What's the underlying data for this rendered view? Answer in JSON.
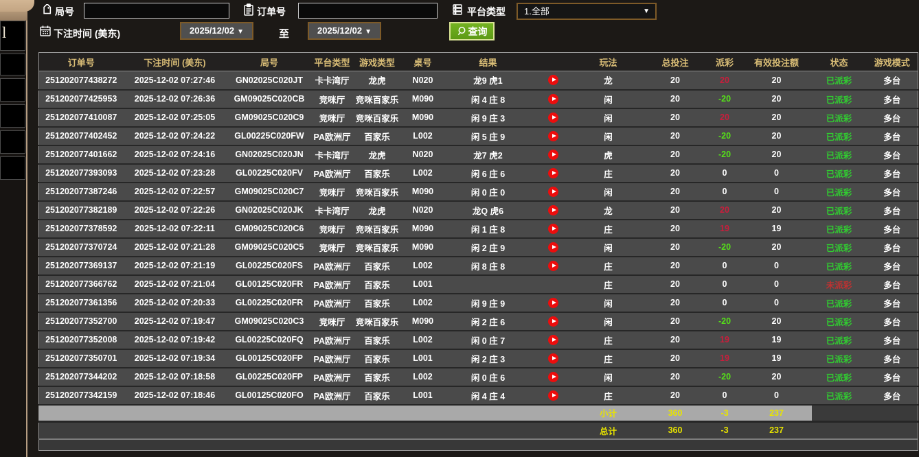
{
  "left_strip": {
    "glyph": "l"
  },
  "filters": {
    "round_label": "局号",
    "order_label": "订单号",
    "platform_label": "平台类型",
    "platform_value": "1.全部",
    "bet_time_label": "下注时间 (美东)",
    "date_from": "2025/12/02",
    "date_to": "2025/12/02",
    "range_separator": "至",
    "query_label": "查询"
  },
  "table": {
    "headers": [
      "订单号",
      "下注时间 (美东)",
      "局号",
      "平台类型",
      "游戏类型",
      "桌号",
      "结果",
      "",
      "玩法",
      "总投注",
      "派彩",
      "有效投注额",
      "状态",
      "游戏模式"
    ],
    "rows": [
      {
        "order": "251202077438272",
        "time": "2025-12-02 07:27:46",
        "round": "GN02025C020JT",
        "platform": "卡卡湾厅",
        "game": "龙虎",
        "table_no": "N020",
        "result": "龙9 虎1",
        "play": true,
        "bet_type": "龙",
        "total_bet": "20",
        "payout": "20",
        "valid_bet": "20",
        "status": "已派彩",
        "paid": true,
        "mode": "多台"
      },
      {
        "order": "251202077425953",
        "time": "2025-12-02 07:26:36",
        "round": "GM09025C020CB",
        "platform": "竞咪厅",
        "game": "竞咪百家乐",
        "table_no": "M090",
        "result": "闲 4 庄 8",
        "play": true,
        "bet_type": "闲",
        "total_bet": "20",
        "payout": "-20",
        "valid_bet": "20",
        "status": "已派彩",
        "paid": true,
        "mode": "多台"
      },
      {
        "order": "251202077410087",
        "time": "2025-12-02 07:25:05",
        "round": "GM09025C020C9",
        "platform": "竞咪厅",
        "game": "竞咪百家乐",
        "table_no": "M090",
        "result": "闲 9 庄 3",
        "play": true,
        "bet_type": "闲",
        "total_bet": "20",
        "payout": "20",
        "valid_bet": "20",
        "status": "已派彩",
        "paid": true,
        "mode": "多台"
      },
      {
        "order": "251202077402452",
        "time": "2025-12-02 07:24:22",
        "round": "GL00225C020FW",
        "platform": "PA欧洲厅",
        "game": "百家乐",
        "table_no": "L002",
        "result": "闲 5 庄 9",
        "play": true,
        "bet_type": "闲",
        "total_bet": "20",
        "payout": "-20",
        "valid_bet": "20",
        "status": "已派彩",
        "paid": true,
        "mode": "多台"
      },
      {
        "order": "251202077401662",
        "time": "2025-12-02 07:24:16",
        "round": "GN02025C020JN",
        "platform": "卡卡湾厅",
        "game": "龙虎",
        "table_no": "N020",
        "result": "龙7 虎2",
        "play": true,
        "bet_type": "虎",
        "total_bet": "20",
        "payout": "-20",
        "valid_bet": "20",
        "status": "已派彩",
        "paid": true,
        "mode": "多台"
      },
      {
        "order": "251202077393093",
        "time": "2025-12-02 07:23:28",
        "round": "GL00225C020FV",
        "platform": "PA欧洲厅",
        "game": "百家乐",
        "table_no": "L002",
        "result": "闲 6 庄 6",
        "play": true,
        "bet_type": "庄",
        "total_bet": "20",
        "payout": "0",
        "valid_bet": "0",
        "status": "已派彩",
        "paid": true,
        "mode": "多台"
      },
      {
        "order": "251202077387246",
        "time": "2025-12-02 07:22:57",
        "round": "GM09025C020C7",
        "platform": "竞咪厅",
        "game": "竞咪百家乐",
        "table_no": "M090",
        "result": "闲 0 庄 0",
        "play": true,
        "bet_type": "闲",
        "total_bet": "20",
        "payout": "0",
        "valid_bet": "0",
        "status": "已派彩",
        "paid": true,
        "mode": "多台"
      },
      {
        "order": "251202077382189",
        "time": "2025-12-02 07:22:26",
        "round": "GN02025C020JK",
        "platform": "卡卡湾厅",
        "game": "龙虎",
        "table_no": "N020",
        "result": "龙Q 虎6",
        "play": true,
        "bet_type": "龙",
        "total_bet": "20",
        "payout": "20",
        "valid_bet": "20",
        "status": "已派彩",
        "paid": true,
        "mode": "多台"
      },
      {
        "order": "251202077378592",
        "time": "2025-12-02 07:22:11",
        "round": "GM09025C020C6",
        "platform": "竞咪厅",
        "game": "竞咪百家乐",
        "table_no": "M090",
        "result": "闲 1 庄 8",
        "play": true,
        "bet_type": "庄",
        "total_bet": "20",
        "payout": "19",
        "valid_bet": "19",
        "status": "已派彩",
        "paid": true,
        "mode": "多台"
      },
      {
        "order": "251202077370724",
        "time": "2025-12-02 07:21:28",
        "round": "GM09025C020C5",
        "platform": "竞咪厅",
        "game": "竞咪百家乐",
        "table_no": "M090",
        "result": "闲 2 庄 9",
        "play": true,
        "bet_type": "闲",
        "total_bet": "20",
        "payout": "-20",
        "valid_bet": "20",
        "status": "已派彩",
        "paid": true,
        "mode": "多台"
      },
      {
        "order": "251202077369137",
        "time": "2025-12-02 07:21:19",
        "round": "GL00225C020FS",
        "platform": "PA欧洲厅",
        "game": "百家乐",
        "table_no": "L002",
        "result": "闲 8 庄 8",
        "play": true,
        "bet_type": "庄",
        "total_bet": "20",
        "payout": "0",
        "valid_bet": "0",
        "status": "已派彩",
        "paid": true,
        "mode": "多台"
      },
      {
        "order": "251202077366762",
        "time": "2025-12-02 07:21:04",
        "round": "GL00125C020FR",
        "platform": "PA欧洲厅",
        "game": "百家乐",
        "table_no": "L001",
        "result": "",
        "play": false,
        "bet_type": "庄",
        "total_bet": "20",
        "payout": "0",
        "valid_bet": "0",
        "status": "未派彩",
        "paid": false,
        "mode": "多台"
      },
      {
        "order": "251202077361356",
        "time": "2025-12-02 07:20:33",
        "round": "GL00225C020FR",
        "platform": "PA欧洲厅",
        "game": "百家乐",
        "table_no": "L002",
        "result": "闲 9 庄 9",
        "play": true,
        "bet_type": "闲",
        "total_bet": "20",
        "payout": "0",
        "valid_bet": "0",
        "status": "已派彩",
        "paid": true,
        "mode": "多台"
      },
      {
        "order": "251202077352700",
        "time": "2025-12-02 07:19:47",
        "round": "GM09025C020C3",
        "platform": "竞咪厅",
        "game": "竞咪百家乐",
        "table_no": "M090",
        "result": "闲 2 庄 6",
        "play": true,
        "bet_type": "闲",
        "total_bet": "20",
        "payout": "-20",
        "valid_bet": "20",
        "status": "已派彩",
        "paid": true,
        "mode": "多台"
      },
      {
        "order": "251202077352008",
        "time": "2025-12-02 07:19:42",
        "round": "GL00225C020FQ",
        "platform": "PA欧洲厅",
        "game": "百家乐",
        "table_no": "L002",
        "result": "闲 0 庄 7",
        "play": true,
        "bet_type": "庄",
        "total_bet": "20",
        "payout": "19",
        "valid_bet": "19",
        "status": "已派彩",
        "paid": true,
        "mode": "多台"
      },
      {
        "order": "251202077350701",
        "time": "2025-12-02 07:19:34",
        "round": "GL00125C020FP",
        "platform": "PA欧洲厅",
        "game": "百家乐",
        "table_no": "L001",
        "result": "闲 2 庄 3",
        "play": true,
        "bet_type": "庄",
        "total_bet": "20",
        "payout": "19",
        "valid_bet": "19",
        "status": "已派彩",
        "paid": true,
        "mode": "多台"
      },
      {
        "order": "251202077344202",
        "time": "2025-12-02 07:18:58",
        "round": "GL00225C020FP",
        "platform": "PA欧洲厅",
        "game": "百家乐",
        "table_no": "L002",
        "result": "闲 0 庄 6",
        "play": true,
        "bet_type": "闲",
        "total_bet": "20",
        "payout": "-20",
        "valid_bet": "20",
        "status": "已派彩",
        "paid": true,
        "mode": "多台"
      },
      {
        "order": "251202077342159",
        "time": "2025-12-02 07:18:46",
        "round": "GL00125C020FO",
        "platform": "PA欧洲厅",
        "game": "百家乐",
        "table_no": "L001",
        "result": "闲 4 庄 4",
        "play": true,
        "bet_type": "庄",
        "total_bet": "20",
        "payout": "0",
        "valid_bet": "0",
        "status": "已派彩",
        "paid": true,
        "mode": "多台"
      }
    ],
    "subtotal": {
      "label": "小计",
      "total_bet": "360",
      "payout": "-3",
      "valid_bet": "237"
    },
    "grand_total": {
      "label": "总计",
      "total_bet": "360",
      "payout": "-3",
      "valid_bet": "237"
    }
  },
  "colors": {
    "header_text": "#d9bd76",
    "payout_positive": "#c81e3c",
    "payout_negative": "#55e019",
    "status_paid": "#31cc31",
    "status_unpaid": "#bf3131",
    "totals_text": "#e8e400",
    "query_button": "#66a51c",
    "picker_border": "#7d5a28",
    "subtotal_band": "#a9a9a9"
  }
}
